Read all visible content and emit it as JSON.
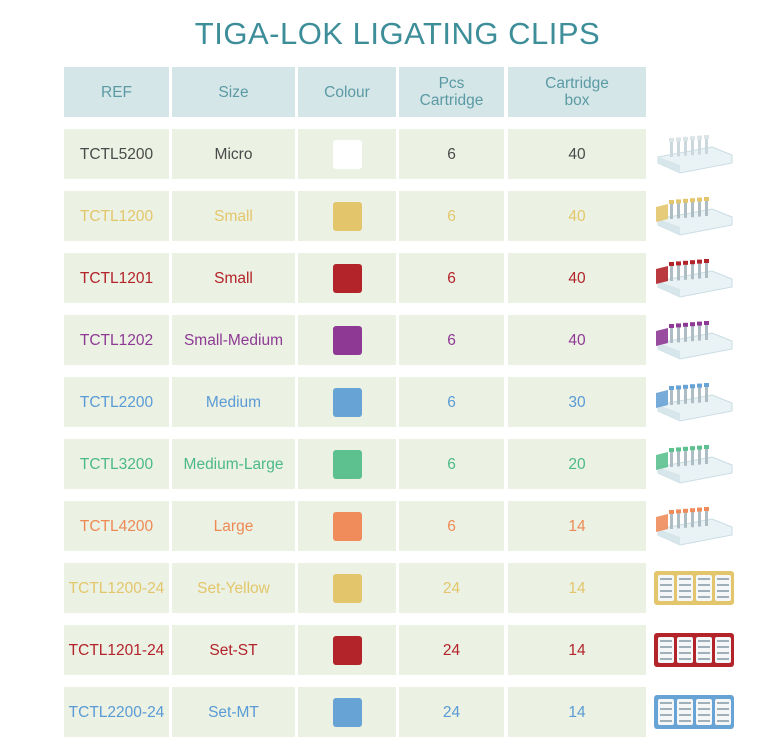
{
  "title": "TIGA-LOK LIGATING CLIPS",
  "headers": [
    "REF",
    "Size",
    "Colour",
    "Pcs\nCartridge",
    "Cartridge\nbox"
  ],
  "rows": [
    {
      "ref": "TCTL5200",
      "size": "Micro",
      "pcs": "6",
      "box": "40",
      "text_color": "#4a4a4a",
      "swatch": "#ffffff",
      "image": "micro-cartridge"
    },
    {
      "ref": "TCTL1200",
      "size": "Small",
      "pcs": "6",
      "box": "40",
      "text_color": "#e3c66b",
      "swatch": "#e3c66b",
      "image": "yellow-cartridge"
    },
    {
      "ref": "TCTL1201",
      "size": "Small",
      "pcs": "6",
      "box": "40",
      "text_color": "#b3232a",
      "swatch": "#b3232a",
      "image": "red-cartridge"
    },
    {
      "ref": "TCTL1202",
      "size": "Small-Medium",
      "pcs": "6",
      "box": "40",
      "text_color": "#8e3a95",
      "swatch": "#8e3a95",
      "image": "purple-cartridge"
    },
    {
      "ref": "TCTL2200",
      "size": "Medium",
      "pcs": "6",
      "box": "30",
      "text_color": "#5a9bd5",
      "swatch": "#68a3d6",
      "image": "blue-cartridge"
    },
    {
      "ref": "TCTL3200",
      "size": "Medium-Large",
      "pcs": "6",
      "box": "20",
      "text_color": "#4cb98a",
      "swatch": "#5cc18f",
      "image": "green-cartridge"
    },
    {
      "ref": "TCTL4200",
      "size": "Large",
      "pcs": "6",
      "box": "14",
      "text_color": "#ee8a55",
      "swatch": "#f08c5c",
      "image": "orange-cartridge"
    },
    {
      "ref": "TCTL1200-24",
      "size": "Set-Yellow",
      "pcs": "24",
      "box": "14",
      "text_color": "#e3c66b",
      "swatch": "#e3c66b",
      "image": "yellow-set"
    },
    {
      "ref": "TCTL1201-24",
      "size": "Set-ST",
      "pcs": "24",
      "box": "14",
      "text_color": "#b3232a",
      "swatch": "#b3232a",
      "image": "red-set"
    },
    {
      "ref": "TCTL2200-24",
      "size": "Set-MT",
      "pcs": "24",
      "box": "14",
      "text_color": "#5a9bd5",
      "swatch": "#68a3d6",
      "image": "blue-set"
    }
  ]
}
